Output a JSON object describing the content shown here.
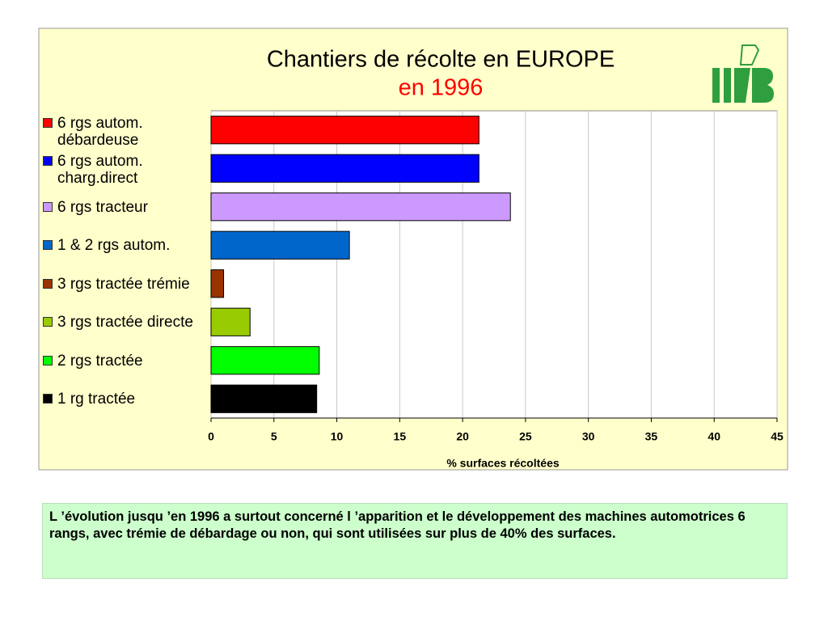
{
  "chart_data": {
    "type": "bar",
    "orientation": "horizontal",
    "title": "Chantiers de récolte en EUROPE",
    "subtitle": "en 1996",
    "x_label": "% surfaces récoltées",
    "categories": [
      "6 rgs autom. débardeuse",
      "6 rgs autom. charg.direct",
      "6 rgs tracteur",
      "1 & 2 rgs autom.",
      "3 rgs tractée trémie",
      "3 rgs tractée directe",
      "2 rgs tractée",
      "1 rg tractée"
    ],
    "values": [
      21.3,
      21.3,
      23.8,
      11.0,
      1.0,
      3.1,
      8.6,
      8.4
    ],
    "colors": [
      "#ff0000",
      "#0000ff",
      "#cc99ff",
      "#0066cc",
      "#993300",
      "#99cc00",
      "#00ff00",
      "#000000"
    ],
    "xlim": [
      0,
      45
    ],
    "xticks": [
      0,
      5,
      10,
      15,
      20,
      25,
      30,
      35,
      40,
      45
    ],
    "grid": true
  },
  "note": "L ’évolution jusqu ’en 1996 a surtout concerné l ’apparition et le développement des machines automotrices 6 rangs, avec trémie de débardage ou non, qui sont utilisées sur plus de 40% des surfaces."
}
